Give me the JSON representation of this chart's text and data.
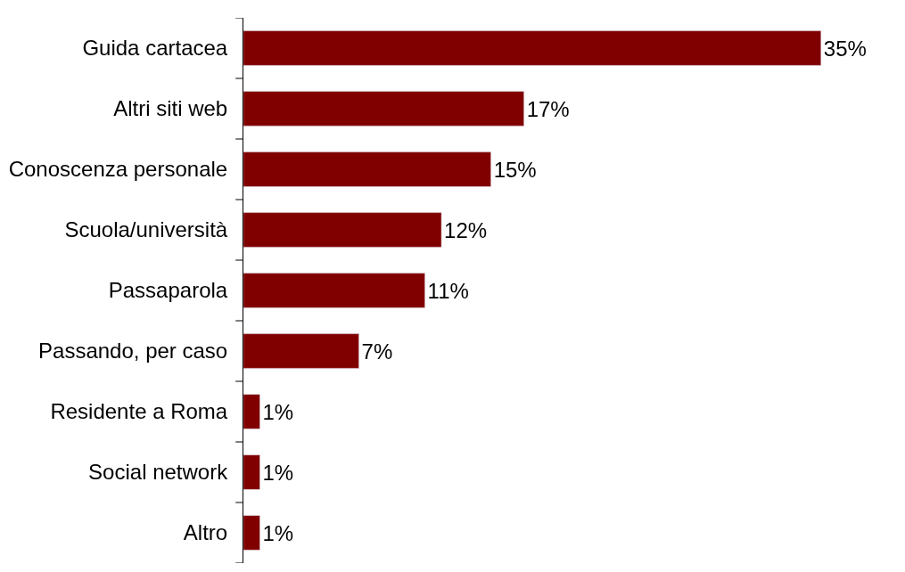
{
  "chart_data": {
    "type": "bar",
    "orientation": "horizontal",
    "categories": [
      "Guida cartacea",
      "Altri siti web",
      "Conoscenza personale",
      "Scuola/università",
      "Passaparola",
      "Passando, per caso",
      "Residente a Roma",
      "Social network",
      "Altro"
    ],
    "values": [
      35,
      17,
      15,
      12,
      11,
      7,
      1,
      1,
      1
    ],
    "value_labels": [
      "35%",
      "17%",
      "15%",
      "12%",
      "11%",
      "7%",
      "1%",
      "1%",
      "1%"
    ],
    "color": "#800000"
  }
}
